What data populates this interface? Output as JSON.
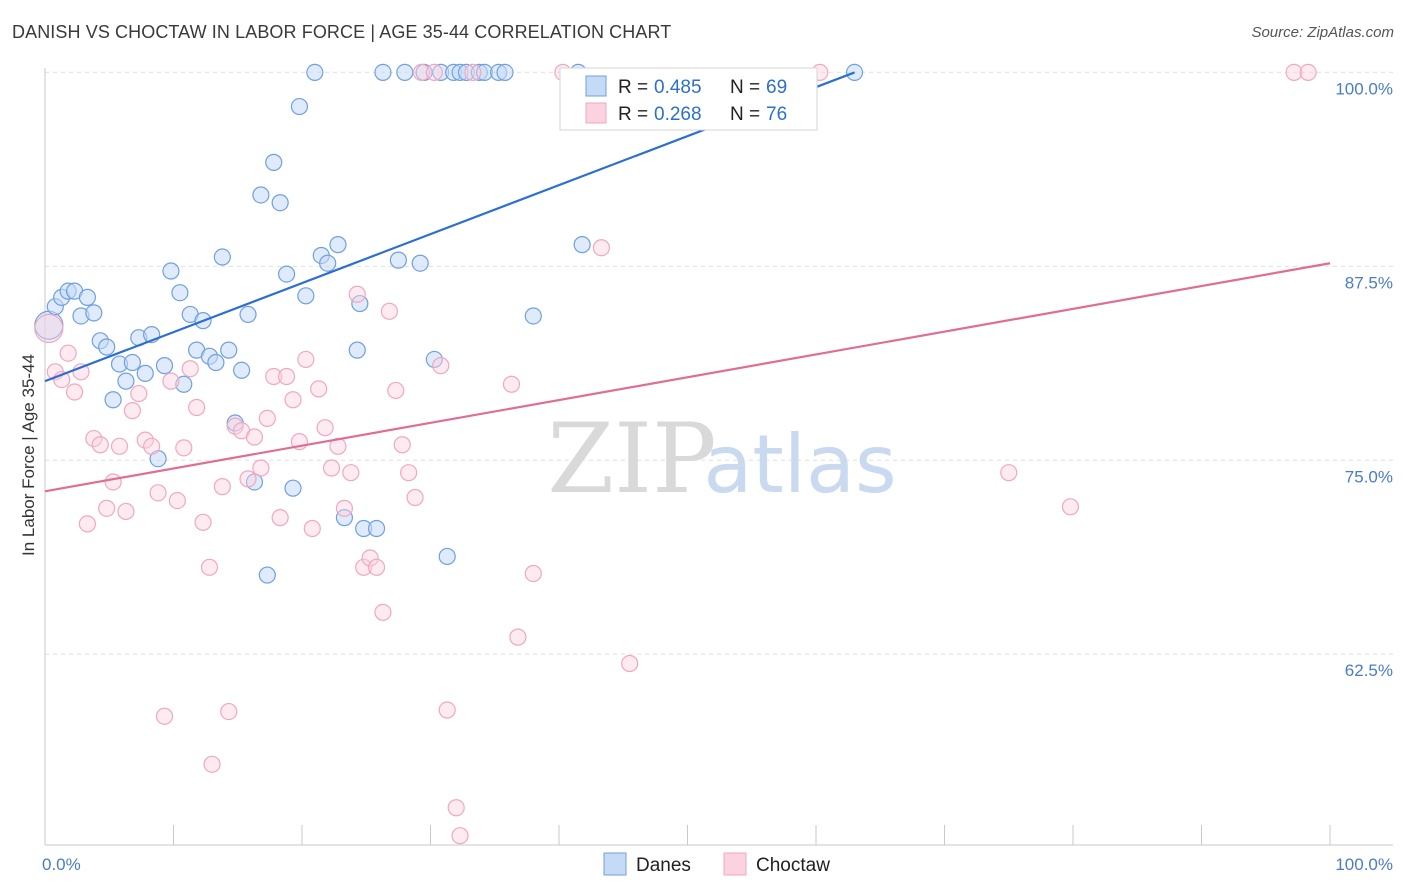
{
  "title": "DANISH VS CHOCTAW IN LABOR FORCE | AGE 35-44 CORRELATION CHART",
  "source": "Source: ZipAtlas.com",
  "watermark": {
    "zip": "ZIP",
    "atlas": "atlas"
  },
  "colors": {
    "danes": "#6fa0e0",
    "danes_line": "#2b6fd0",
    "choctaw": "#f1a7c0",
    "choctaw_line": "#e06d95",
    "tick": "#4a7cc7"
  },
  "chart_data": {
    "type": "scatter",
    "title": "DANISH VS CHOCTAW IN LABOR FORCE | AGE 35-44 CORRELATION CHART",
    "xlabel": "",
    "ylabel": "In Labor Force | Age 35-44",
    "xlim": [
      0,
      100
    ],
    "ylim": [
      50.2,
      100.8
    ],
    "x_tick_labels": [
      {
        "value": 0,
        "label": "0.0%"
      },
      {
        "value": 100,
        "label": "100.0%"
      }
    ],
    "y_tick_labels": [
      {
        "value": 100,
        "label": "100.0%"
      },
      {
        "value": 87.5,
        "label": "87.5%"
      },
      {
        "value": 75,
        "label": "75.0%"
      },
      {
        "value": 62.5,
        "label": "62.5%"
      }
    ],
    "legend_position": "top-center",
    "series": [
      {
        "name": "Danes",
        "stats": {
          "r_label": "R =",
          "r": "0.485",
          "n_label": "N =",
          "n": "69"
        },
        "trend": [
          {
            "x": 0,
            "y": 80.1
          },
          {
            "x": 63,
            "y": 100.0
          }
        ],
        "points": [
          {
            "x": 0.3,
            "y": 83.7,
            "big": true
          },
          {
            "x": 0.8,
            "y": 84.9
          },
          {
            "x": 1.3,
            "y": 85.5
          },
          {
            "x": 1.8,
            "y": 85.9
          },
          {
            "x": 2.3,
            "y": 85.9
          },
          {
            "x": 2.8,
            "y": 84.3
          },
          {
            "x": 3.3,
            "y": 85.5
          },
          {
            "x": 3.8,
            "y": 84.5
          },
          {
            "x": 4.3,
            "y": 82.7
          },
          {
            "x": 4.8,
            "y": 82.3
          },
          {
            "x": 5.3,
            "y": 78.9
          },
          {
            "x": 5.8,
            "y": 81.2
          },
          {
            "x": 6.3,
            "y": 80.1
          },
          {
            "x": 6.8,
            "y": 81.3
          },
          {
            "x": 7.3,
            "y": 82.9
          },
          {
            "x": 7.8,
            "y": 80.6
          },
          {
            "x": 8.3,
            "y": 83.1
          },
          {
            "x": 8.8,
            "y": 75.1
          },
          {
            "x": 9.3,
            "y": 81.1
          },
          {
            "x": 9.8,
            "y": 87.2
          },
          {
            "x": 10.5,
            "y": 85.8
          },
          {
            "x": 10.8,
            "y": 79.9
          },
          {
            "x": 11.3,
            "y": 84.4
          },
          {
            "x": 11.8,
            "y": 82.1
          },
          {
            "x": 12.3,
            "y": 84.0
          },
          {
            "x": 12.8,
            "y": 81.7
          },
          {
            "x": 13.3,
            "y": 81.3
          },
          {
            "x": 13.8,
            "y": 88.1
          },
          {
            "x": 14.3,
            "y": 82.1
          },
          {
            "x": 14.8,
            "y": 77.4
          },
          {
            "x": 15.3,
            "y": 80.8
          },
          {
            "x": 15.8,
            "y": 84.4
          },
          {
            "x": 16.3,
            "y": 73.6
          },
          {
            "x": 16.8,
            "y": 92.1
          },
          {
            "x": 17.3,
            "y": 67.6
          },
          {
            "x": 17.8,
            "y": 94.2
          },
          {
            "x": 18.3,
            "y": 91.6
          },
          {
            "x": 18.8,
            "y": 87.0
          },
          {
            "x": 19.3,
            "y": 73.2
          },
          {
            "x": 19.8,
            "y": 97.8
          },
          {
            "x": 20.3,
            "y": 85.6
          },
          {
            "x": 21.0,
            "y": 100.0
          },
          {
            "x": 21.5,
            "y": 88.2
          },
          {
            "x": 22.0,
            "y": 87.7
          },
          {
            "x": 22.8,
            "y": 88.9
          },
          {
            "x": 23.3,
            "y": 71.3
          },
          {
            "x": 24.3,
            "y": 82.1
          },
          {
            "x": 24.5,
            "y": 85.1
          },
          {
            "x": 24.8,
            "y": 70.6
          },
          {
            "x": 25.8,
            "y": 70.6
          },
          {
            "x": 26.3,
            "y": 100.0
          },
          {
            "x": 27.5,
            "y": 87.9
          },
          {
            "x": 28.0,
            "y": 100.0
          },
          {
            "x": 29.2,
            "y": 87.7
          },
          {
            "x": 29.5,
            "y": 100.0
          },
          {
            "x": 30.3,
            "y": 81.5
          },
          {
            "x": 30.8,
            "y": 100.0
          },
          {
            "x": 31.3,
            "y": 68.8
          },
          {
            "x": 31.8,
            "y": 100.0
          },
          {
            "x": 32.3,
            "y": 100.0
          },
          {
            "x": 32.8,
            "y": 100.0
          },
          {
            "x": 33.8,
            "y": 100.0
          },
          {
            "x": 34.2,
            "y": 100.0
          },
          {
            "x": 35.3,
            "y": 100.0
          },
          {
            "x": 35.8,
            "y": 100.0
          },
          {
            "x": 38.0,
            "y": 84.3
          },
          {
            "x": 41.5,
            "y": 100.0
          },
          {
            "x": 41.8,
            "y": 88.9
          },
          {
            "x": 63.0,
            "y": 100.0
          }
        ]
      },
      {
        "name": "Choctaw",
        "stats": {
          "r_label": "R =",
          "r": "0.268",
          "n_label": "N =",
          "n": "76"
        },
        "trend": [
          {
            "x": 0,
            "y": 73.0
          },
          {
            "x": 100,
            "y": 87.7
          }
        ],
        "points": [
          {
            "x": 0.3,
            "y": 83.5,
            "big": true
          },
          {
            "x": 0.8,
            "y": 80.7
          },
          {
            "x": 1.3,
            "y": 80.2
          },
          {
            "x": 1.8,
            "y": 81.9
          },
          {
            "x": 2.3,
            "y": 79.4
          },
          {
            "x": 2.8,
            "y": 80.7
          },
          {
            "x": 3.3,
            "y": 70.9
          },
          {
            "x": 3.8,
            "y": 76.4
          },
          {
            "x": 4.3,
            "y": 76.0
          },
          {
            "x": 4.8,
            "y": 71.9
          },
          {
            "x": 5.3,
            "y": 73.6
          },
          {
            "x": 5.8,
            "y": 75.9
          },
          {
            "x": 6.3,
            "y": 71.7
          },
          {
            "x": 6.8,
            "y": 78.2
          },
          {
            "x": 7.3,
            "y": 79.3
          },
          {
            "x": 7.8,
            "y": 76.3
          },
          {
            "x": 8.3,
            "y": 75.9
          },
          {
            "x": 8.8,
            "y": 72.9
          },
          {
            "x": 9.3,
            "y": 58.5
          },
          {
            "x": 9.8,
            "y": 80.1
          },
          {
            "x": 10.3,
            "y": 72.4
          },
          {
            "x": 10.8,
            "y": 75.8
          },
          {
            "x": 11.3,
            "y": 80.9
          },
          {
            "x": 11.8,
            "y": 78.4
          },
          {
            "x": 12.3,
            "y": 71.0
          },
          {
            "x": 12.8,
            "y": 68.1
          },
          {
            "x": 13.0,
            "y": 55.4
          },
          {
            "x": 13.8,
            "y": 73.3
          },
          {
            "x": 14.3,
            "y": 58.8
          },
          {
            "x": 14.8,
            "y": 77.2
          },
          {
            "x": 15.3,
            "y": 76.9
          },
          {
            "x": 15.8,
            "y": 73.8
          },
          {
            "x": 16.3,
            "y": 76.5
          },
          {
            "x": 16.8,
            "y": 74.5
          },
          {
            "x": 17.3,
            "y": 77.7
          },
          {
            "x": 17.8,
            "y": 80.4
          },
          {
            "x": 18.3,
            "y": 71.3
          },
          {
            "x": 18.8,
            "y": 80.4
          },
          {
            "x": 19.3,
            "y": 78.9
          },
          {
            "x": 19.8,
            "y": 76.2
          },
          {
            "x": 20.3,
            "y": 81.5
          },
          {
            "x": 20.8,
            "y": 70.6
          },
          {
            "x": 21.3,
            "y": 79.6
          },
          {
            "x": 21.8,
            "y": 77.1
          },
          {
            "x": 22.3,
            "y": 74.5
          },
          {
            "x": 22.8,
            "y": 75.9
          },
          {
            "x": 23.3,
            "y": 71.9
          },
          {
            "x": 23.8,
            "y": 74.2
          },
          {
            "x": 24.3,
            "y": 85.7
          },
          {
            "x": 24.8,
            "y": 68.1
          },
          {
            "x": 25.3,
            "y": 68.7
          },
          {
            "x": 25.8,
            "y": 68.1
          },
          {
            "x": 26.3,
            "y": 65.2
          },
          {
            "x": 26.8,
            "y": 84.6
          },
          {
            "x": 27.3,
            "y": 79.5
          },
          {
            "x": 27.8,
            "y": 76.0
          },
          {
            "x": 28.3,
            "y": 74.2
          },
          {
            "x": 28.8,
            "y": 72.6
          },
          {
            "x": 29.3,
            "y": 100.0
          },
          {
            "x": 30.3,
            "y": 100.0
          },
          {
            "x": 30.8,
            "y": 81.1
          },
          {
            "x": 31.3,
            "y": 58.9
          },
          {
            "x": 32.0,
            "y": 52.6
          },
          {
            "x": 32.3,
            "y": 50.8
          },
          {
            "x": 33.3,
            "y": 100.0
          },
          {
            "x": 36.3,
            "y": 79.9
          },
          {
            "x": 36.8,
            "y": 63.6
          },
          {
            "x": 38.0,
            "y": 67.7
          },
          {
            "x": 40.3,
            "y": 100.0
          },
          {
            "x": 43.3,
            "y": 88.7
          },
          {
            "x": 45.5,
            "y": 61.9
          },
          {
            "x": 60.3,
            "y": 100.0
          },
          {
            "x": 75.0,
            "y": 74.2
          },
          {
            "x": 79.8,
            "y": 72.0
          },
          {
            "x": 97.2,
            "y": 100.0
          },
          {
            "x": 98.3,
            "y": 100.0
          }
        ]
      }
    ]
  }
}
